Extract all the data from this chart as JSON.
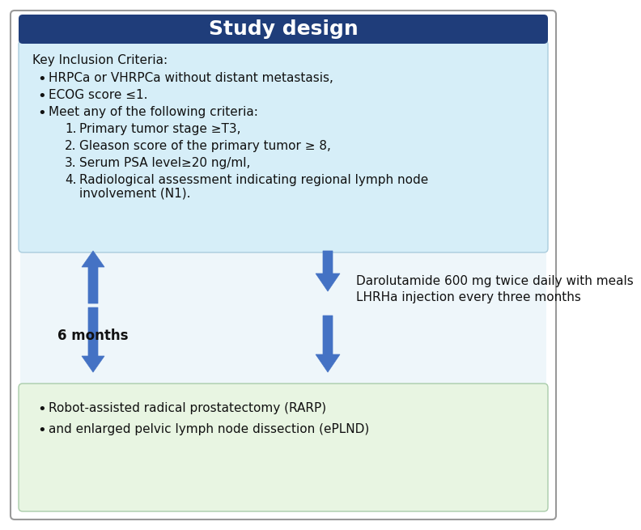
{
  "title": "Study design",
  "title_bg_color": "#1f3d7a",
  "title_text_color": "#ffffff",
  "title_fontsize": 18,
  "outer_bg_color": "#ffffff",
  "top_box_bg_color": "#d6eef8",
  "middle_bg_color": "#eef6fa",
  "bottom_box_bg_color": "#e8f5e2",
  "arrow_color": "#4472c4",
  "text_color": "#111111",
  "inclusion_header": "Key Inclusion Criteria:",
  "bullets": [
    "HRPCa or VHRPCa without distant metastasis,",
    "ECOG score ≤1.",
    "Meet any of the following criteria:"
  ],
  "numbered": [
    "Primary tumor stage ≥T3,",
    "Gleason score of the primary tumor ≥ 8,",
    "Serum PSA level≥20 ng/ml,",
    "Radiological assessment indicating regional lymph node\ninvolvement (N1)."
  ],
  "months_label": "6 months",
  "treatment_lines": [
    "Darolutamide 600 mg twice daily with meals",
    "LHRHa injection every three months"
  ],
  "outcome_bullets": [
    "Robot-assisted radical prostatectomy (RARP)",
    "and enlarged pelvic lymph node dissection (ePLND)"
  ],
  "body_fontsize": 11,
  "months_fontsize": 12
}
